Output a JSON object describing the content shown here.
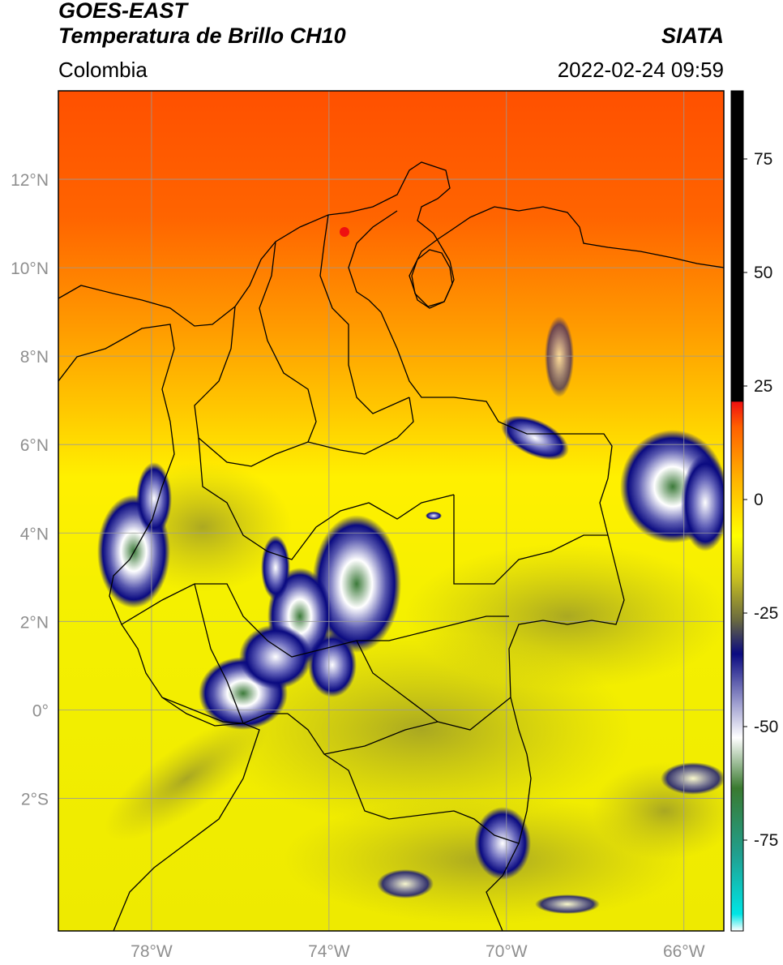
{
  "header": {
    "satellite": "GOES-EAST",
    "product": "Temperatura de Brillo CH10",
    "agency": "SIATA",
    "region": "Colombia",
    "timestamp": "2022-02-24 09:59"
  },
  "map": {
    "lat_ticks": [
      {
        "value": 12,
        "label": "12°N"
      },
      {
        "value": 10,
        "label": "10°N"
      },
      {
        "value": 8,
        "label": "8°N"
      },
      {
        "value": 6,
        "label": "6°N"
      },
      {
        "value": 4,
        "label": "4°N"
      },
      {
        "value": 2,
        "label": "2°N"
      },
      {
        "value": 0,
        "label": "0°"
      },
      {
        "value": -2,
        "label": "2°S"
      }
    ],
    "lon_ticks": [
      {
        "value": -78,
        "label": "78°W"
      },
      {
        "value": -74,
        "label": "74°W"
      },
      {
        "value": -70,
        "label": "70°W"
      },
      {
        "value": -66,
        "label": "66°W"
      }
    ],
    "lon_range": [
      -80.1,
      -65.1
    ],
    "lat_range": [
      -5.0,
      14.0
    ],
    "gridlines": true
  },
  "colorbar": {
    "range": [
      -95,
      90
    ],
    "ticks": [
      {
        "value": 75,
        "label": "75"
      },
      {
        "value": 50,
        "label": "50"
      },
      {
        "value": 25,
        "label": "25"
      },
      {
        "value": 0,
        "label": "0"
      },
      {
        "value": -25,
        "label": "-25"
      },
      {
        "value": -50,
        "label": "-50"
      },
      {
        "value": -75,
        "label": "-75"
      }
    ]
  }
}
